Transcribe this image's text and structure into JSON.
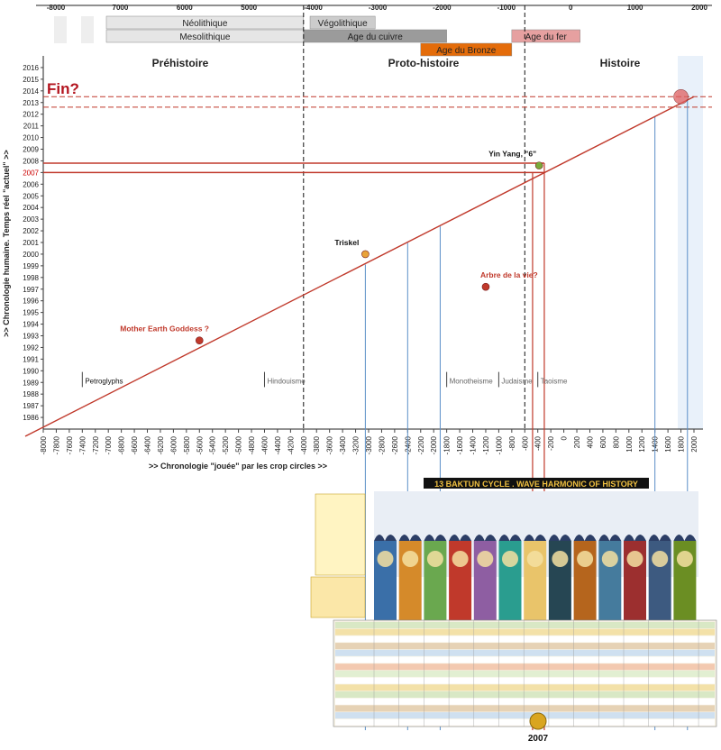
{
  "chart_data": {
    "type": "line",
    "title": "",
    "xlabel": ">> Chronologie \"jouée\" par les crop circles >>",
    "ylabel": ">> Chronologie humaine. Temps réel \"actuel\" >>",
    "top_axis_ticks": [
      "-8000",
      "7000",
      "6000",
      "5000",
      "-4000",
      "-3000",
      "-2000",
      "-1000",
      "0",
      "1000",
      "2000"
    ],
    "periods": [
      {
        "label": "Néolithique",
        "start": -7000,
        "end": -4000,
        "row": 0,
        "color": "#e6e6e6"
      },
      {
        "label": "Mesolithique",
        "start": -7000,
        "end": -4000,
        "row": 1,
        "color": "#e6e6e6"
      },
      {
        "label": "Végolithique",
        "start": -3900,
        "end": -2900,
        "row": 0,
        "color": "#cccccc"
      },
      {
        "label": "Age du cuivre",
        "start": -4000,
        "end": -1800,
        "row": 1,
        "color": "#9b9b9b"
      },
      {
        "label": "Age du Bronze",
        "start": -2200,
        "end": -800,
        "row": 2,
        "color": "#e46c0a"
      },
      {
        "label": "Age du fer",
        "start": -800,
        "end": 250,
        "row": 1,
        "color": "#e6a0a0"
      }
    ],
    "eras": [
      "Préhistoire",
      "Proto-histoire",
      "Histoire"
    ],
    "y_ticks": [
      1986,
      1987,
      1988,
      1989,
      1990,
      1991,
      1992,
      1993,
      1994,
      1995,
      1996,
      1997,
      1998,
      1999,
      2000,
      2001,
      2002,
      2003,
      2004,
      2005,
      2006,
      2007,
      2008,
      2009,
      2010,
      2011,
      2012,
      2013,
      2014,
      2015,
      2016
    ],
    "x_ticks": [
      "-8000",
      "-7800",
      "-7600",
      "-7400",
      "-7200",
      "-7000",
      "-6800",
      "-6600",
      "-6400",
      "-6200",
      "-6000",
      "-5800",
      "-5600",
      "-5400",
      "-5200",
      "-5000",
      "-4800",
      "-4600",
      "-4400",
      "-4200",
      "-4000",
      "-3800",
      "-3600",
      "-3400",
      "-3200",
      "-3000",
      "-2800",
      "-2600",
      "-2400",
      "-2200",
      "-2000",
      "-1800",
      "-1600",
      "-1400",
      "-1200",
      "-1000",
      "-800",
      "-600",
      "-400",
      "-200",
      "0",
      "200",
      "400",
      "600",
      "800",
      "1000",
      "1200",
      "1400",
      "1600",
      "1800",
      "2000"
    ],
    "line": {
      "x": [
        -8000,
        2000
      ],
      "y": [
        1985,
        2013.5
      ]
    },
    "points": [
      {
        "label": "Mother Earth Goddess ?",
        "x": -5600,
        "y": 1992.6,
        "color": "#c0392b"
      },
      {
        "label": "Triskel",
        "x": -3050,
        "y": 2000.0,
        "color": "#e8a33a"
      },
      {
        "label": "Arbre de la vie?",
        "x": -1200,
        "y": 1997.2,
        "color": "#c0392b"
      },
      {
        "label": "Yin Yang, \"6\"",
        "x": -380,
        "y": 2007.6,
        "color": "#7aab3a"
      },
      {
        "label": "Fin?",
        "x": 1800,
        "y": 2013.5,
        "color": "#e06060"
      }
    ],
    "annotations": [
      {
        "label": "Petroglyphs",
        "x": -7400
      },
      {
        "label": "Hindouisme",
        "x": -4600
      },
      {
        "label": "Monotheisme",
        "x": -1800
      },
      {
        "label": "Judaisme",
        "x": -1000
      },
      {
        "label": "Taoisme",
        "x": -400
      }
    ],
    "grid": false
  },
  "poster": {
    "title": "13 BAKTUN CYCLE . WAVE HARMONIC OF HISTORY",
    "year_label": "2007"
  }
}
